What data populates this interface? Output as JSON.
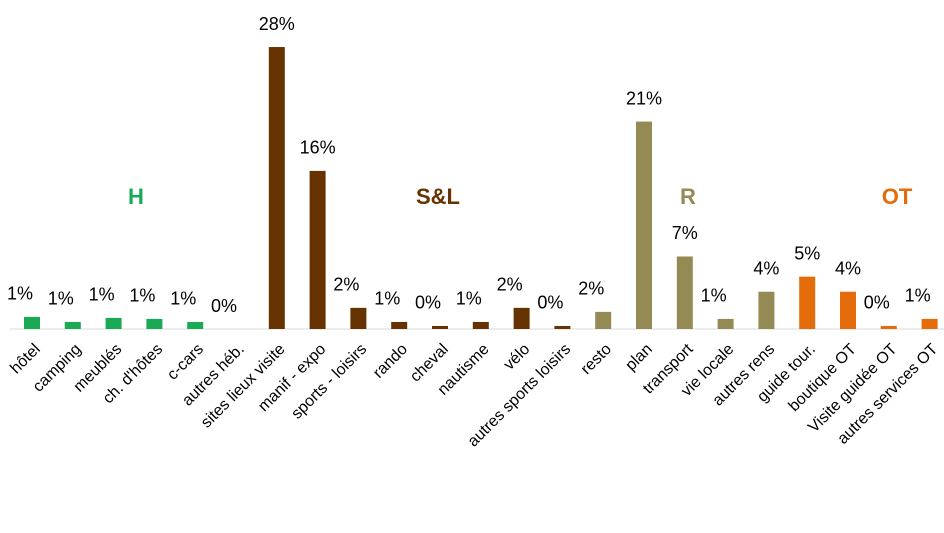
{
  "chart_data": {
    "type": "bar",
    "categories": [
      "hôtel",
      "camping",
      "meublés",
      "ch. d'hôtes",
      "c-cars",
      "autres héb.",
      "sites lieux visite",
      "manif - expo",
      "sports - loisirs",
      "rando",
      "cheval",
      "nautisme",
      "vélo",
      "autres sports loisirs",
      "resto",
      "plan",
      "transport",
      "vie locale",
      "autres rens",
      "guide tour.",
      "boutique OT",
      "Visite guidée OT",
      "autres services OT"
    ],
    "values": [
      1.2,
      0.7,
      1.1,
      1.0,
      0.7,
      0,
      28,
      15.7,
      2.1,
      0.7,
      0.3,
      0.7,
      2.1,
      0.3,
      1.7,
      20.6,
      7.2,
      1.0,
      3.7,
      5.2,
      3.7,
      0.3,
      1.0
    ],
    "value_labels": [
      "1%",
      "1%",
      "1%",
      "1%",
      "1%",
      "0%",
      "28%",
      "16%",
      "2%",
      "1%",
      "0%",
      "1%",
      "2%",
      "0%",
      "2%",
      "21%",
      "7%",
      "1%",
      "4%",
      "5%",
      "4%",
      "0%",
      "1%"
    ],
    "colors": [
      "#1aaa55",
      "#1aaa55",
      "#1aaa55",
      "#1aaa55",
      "#1aaa55",
      "#1aaa55",
      "#663300",
      "#663300",
      "#663300",
      "#663300",
      "#663300",
      "#663300",
      "#663300",
      "#663300",
      "#948a54",
      "#948a54",
      "#948a54",
      "#948a54",
      "#948a54",
      "#e46c0a",
      "#e46c0a",
      "#e46c0a",
      "#e46c0a"
    ],
    "groups": [
      {
        "label": "H",
        "color": "#1aaa55"
      },
      {
        "label": "S&L",
        "color": "#663300"
      },
      {
        "label": "R",
        "color": "#948a54"
      },
      {
        "label": "OT",
        "color": "#e46c0a"
      }
    ]
  }
}
